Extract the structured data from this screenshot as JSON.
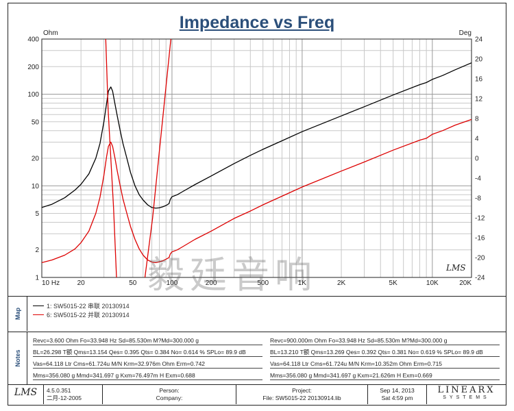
{
  "chart_data": {
    "type": "line",
    "title": "Impedance vs Freq",
    "x_scale": "log",
    "y_scale": "log",
    "xlim": [
      10,
      20000
    ],
    "ylim": [
      1,
      400
    ],
    "y2lim": [
      -24,
      24
    ],
    "ylabel": "Ohm",
    "y2label": "Deg",
    "grid": true,
    "x_ticks": [
      {
        "v": 10,
        "label": "10 Hz"
      },
      {
        "v": 20,
        "label": "20"
      },
      {
        "v": 50,
        "label": "50"
      },
      {
        "v": 100,
        "label": "100"
      },
      {
        "v": 200,
        "label": "200"
      },
      {
        "v": 500,
        "label": "500"
      },
      {
        "v": 1000,
        "label": "1K"
      },
      {
        "v": 2000,
        "label": "2K"
      },
      {
        "v": 5000,
        "label": "5K"
      },
      {
        "v": 10000,
        "label": "10K"
      },
      {
        "v": 20000,
        "label": "20K"
      }
    ],
    "y_ticks": [
      {
        "v": 1,
        "label": "1"
      },
      {
        "v": 2,
        "label": "2"
      },
      {
        "v": 5,
        "label": "5"
      },
      {
        "v": 10,
        "label": "10"
      },
      {
        "v": 20,
        "label": "20"
      },
      {
        "v": 50,
        "label": "50"
      },
      {
        "v": 100,
        "label": "100"
      },
      {
        "v": 200,
        "label": "200"
      },
      {
        "v": 400,
        "label": "400"
      }
    ],
    "y2_ticks": [
      {
        "v": 24,
        "label": "24"
      },
      {
        "v": 20,
        "label": "20"
      },
      {
        "v": 16,
        "label": "16"
      },
      {
        "v": 12,
        "label": "12"
      },
      {
        "v": 8,
        "label": "8"
      },
      {
        "v": 4,
        "label": "4"
      },
      {
        "v": 0,
        "label": "0"
      },
      {
        "v": -4,
        "label": "-4"
      },
      {
        "v": -8,
        "label": "-8"
      },
      {
        "v": -12,
        "label": "-12"
      },
      {
        "v": -16,
        "label": "-16"
      },
      {
        "v": -20,
        "label": "-20"
      },
      {
        "v": -24,
        "label": "-24"
      }
    ],
    "series": [
      {
        "name": "SW5015-22 串联 20130914",
        "axis": "left",
        "color": "#000000",
        "points": [
          [
            10,
            5.8
          ],
          [
            12,
            6.3
          ],
          [
            15,
            7.4
          ],
          [
            18,
            9.0
          ],
          [
            20,
            10.4
          ],
          [
            23,
            13.5
          ],
          [
            26,
            20
          ],
          [
            28,
            29
          ],
          [
            30,
            50
          ],
          [
            31.5,
            80
          ],
          [
            32.5,
            108
          ],
          [
            33.9,
            120
          ],
          [
            35,
            108
          ],
          [
            36.5,
            78
          ],
          [
            38,
            58
          ],
          [
            40,
            40
          ],
          [
            42,
            29
          ],
          [
            45,
            20
          ],
          [
            48,
            14
          ],
          [
            52,
            10
          ],
          [
            56,
            8.0
          ],
          [
            60,
            7.0
          ],
          [
            65,
            6.2
          ],
          [
            70,
            5.8
          ],
          [
            75,
            5.7
          ],
          [
            80,
            5.75
          ],
          [
            85,
            5.9
          ],
          [
            90,
            6.1
          ],
          [
            95,
            6.4
          ],
          [
            97,
            7.1
          ],
          [
            100,
            7.6
          ],
          [
            110,
            8.0
          ],
          [
            120,
            8.6
          ],
          [
            150,
            10.3
          ],
          [
            200,
            12.8
          ],
          [
            300,
            17.5
          ],
          [
            400,
            21.5
          ],
          [
            500,
            25
          ],
          [
            700,
            31
          ],
          [
            1000,
            39
          ],
          [
            2000,
            58
          ],
          [
            3000,
            73
          ],
          [
            5000,
            98
          ],
          [
            8000,
            127
          ],
          [
            9000,
            134
          ],
          [
            10000,
            145
          ],
          [
            12000,
            160
          ],
          [
            15000,
            185
          ],
          [
            20000,
            220
          ]
        ]
      },
      {
        "name": "SW5015-22 并联 20130914",
        "axis": "left",
        "color": "#dd0000",
        "points": [
          [
            10,
            1.45
          ],
          [
            12,
            1.55
          ],
          [
            15,
            1.75
          ],
          [
            18,
            2.05
          ],
          [
            20,
            2.4
          ],
          [
            23,
            3.2
          ],
          [
            26,
            5.0
          ],
          [
            28,
            7.5
          ],
          [
            30,
            13
          ],
          [
            31.5,
            21
          ],
          [
            32.5,
            27
          ],
          [
            33.9,
            30
          ],
          [
            35,
            27
          ],
          [
            36.5,
            20
          ],
          [
            38,
            14.5
          ],
          [
            40,
            10
          ],
          [
            42,
            7.2
          ],
          [
            45,
            5.0
          ],
          [
            48,
            3.6
          ],
          [
            52,
            2.6
          ],
          [
            56,
            2.05
          ],
          [
            60,
            1.75
          ],
          [
            65,
            1.55
          ],
          [
            70,
            1.47
          ],
          [
            75,
            1.45
          ],
          [
            80,
            1.48
          ],
          [
            85,
            1.52
          ],
          [
            90,
            1.58
          ],
          [
            95,
            1.65
          ],
          [
            97,
            1.8
          ],
          [
            100,
            1.9
          ],
          [
            110,
            2.0
          ],
          [
            120,
            2.15
          ],
          [
            150,
            2.6
          ],
          [
            200,
            3.2
          ],
          [
            300,
            4.4
          ],
          [
            400,
            5.3
          ],
          [
            500,
            6.2
          ],
          [
            700,
            7.7
          ],
          [
            1000,
            9.7
          ],
          [
            2000,
            14.5
          ],
          [
            3000,
            18.2
          ],
          [
            5000,
            24.5
          ],
          [
            8000,
            31.5
          ],
          [
            9000,
            33
          ],
          [
            10000,
            36.5
          ],
          [
            12000,
            40
          ],
          [
            15000,
            46
          ],
          [
            20000,
            53
          ]
        ]
      },
      {
        "name": "SW5015-22 串联 20130914 phase",
        "axis": "right",
        "color": "#dd0000",
        "points": [
          [
            31.0,
            24
          ],
          [
            32.3,
            10
          ],
          [
            33.9,
            0
          ],
          [
            35.6,
            -10
          ],
          [
            37.5,
            -24
          ]
        ]
      },
      {
        "name": "SW5015-22 并联 20130914 phase",
        "axis": "right",
        "color": "#dd0000",
        "points": [
          [
            62,
            -24
          ],
          [
            71,
            -12
          ],
          [
            79,
            0
          ],
          [
            88,
            12
          ],
          [
            98,
            24
          ]
        ]
      }
    ]
  },
  "legend": {
    "items": [
      {
        "index": "1:",
        "label": "SW5015-22 串联 20130914",
        "color": "#000000"
      },
      {
        "index": "6:",
        "label": "SW5015-22 并联 20130914",
        "color": "#dd0000"
      }
    ]
  },
  "side_labels": {
    "map": "Map",
    "notes": "Notes"
  },
  "notes": {
    "left": [
      "Revc=3.600 Ohm  Fo=33.948 Hz  Sd=85.530m M?Md=300.000 g",
      "BL=26.298 T额  Qms=13.154  Qes= 0.395  Qts= 0.384  No= 0.614 %  SPLo= 89.9 dB",
      "Vas=64.118 Ltr  Cms=61.724u M/N  Krm=32.976m Ohm  Erm=0.742",
      "Mms=356.080 g  Mmd=341.697 g  Kxm=76.497m H  Exm=0.688"
    ],
    "right": [
      "Revc=900.000m Ohm  Fo=33.948 Hz  Sd=85.530m M?Md=300.000 g",
      "BL=13.210 T额  Qms=13.269  Qes= 0.392  Qts= 0.381  No= 0.619 %  SPLo= 89.9 dB",
      "Vas=64.118 Ltr  Cms=61.724u M/N  Krm=10.352m Ohm  Erm=0.715",
      "Mms=356.080 g  Mmd=341.697 g  Kxm=21.626m H  Exm=0.669"
    ]
  },
  "footer": {
    "logo_text": "LMS",
    "version": "4.5.0.351",
    "date": "二月-12-2005",
    "person": "Person:",
    "company": "Company:",
    "project": "Project:",
    "file": "File:  SW5015-22  20130914.lib",
    "run_date": "Sep 14, 2013",
    "run_time": "Sat  4:59 pm",
    "brand": "LINEARX",
    "brand_sub": "SYSTEMS"
  },
  "chart_logo": "LMS",
  "watermark": "毅廷音响"
}
